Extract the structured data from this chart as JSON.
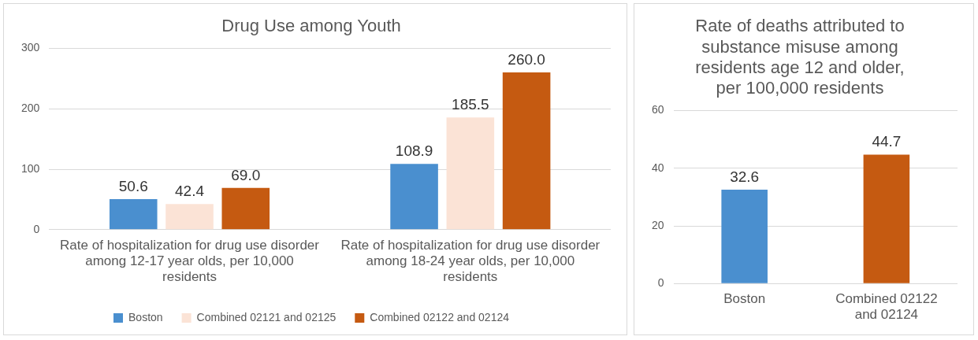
{
  "chart_data": [
    {
      "type": "bar",
      "title": "Drug Use among Youth",
      "categories": [
        "Rate of hospitalization for drug use disorder among 12-17 year olds, per 10,000 residents",
        "Rate of hospitalization for drug use disorder among 18-24 year olds, per 10,000 residents"
      ],
      "series": [
        {
          "name": "Boston",
          "color": "#4a8fcf",
          "values": [
            50.6,
            108.9
          ],
          "value_labels": [
            "50.6",
            "108.9"
          ]
        },
        {
          "name": "Combined 02121 and 02125",
          "color": "#fbe3d6",
          "values": [
            42.4,
            185.5
          ],
          "value_labels": [
            "42.4",
            "185.5"
          ]
        },
        {
          "name": "Combined 02122 and 02124",
          "color": "#c55a11",
          "values": [
            69.0,
            260.0
          ],
          "value_labels": [
            "69.0",
            "260.0"
          ]
        }
      ],
      "ylim": [
        0,
        300
      ],
      "yticks": [
        0,
        100,
        200,
        300
      ],
      "grid": "y",
      "legend": "bottom"
    },
    {
      "type": "bar",
      "title": "Rate of deaths attributed to substance misuse among residents age 12 and older, per 100,000 residents",
      "categories": [
        "Boston",
        "Combined 02122 and 02124"
      ],
      "values": [
        32.6,
        44.7
      ],
      "colors": [
        "#4a8fcf",
        "#c55a11"
      ],
      "value_labels": [
        "32.6",
        "44.7"
      ],
      "ylim": [
        0,
        60
      ],
      "yticks": [
        0,
        20,
        40,
        60
      ],
      "grid": "y"
    }
  ]
}
